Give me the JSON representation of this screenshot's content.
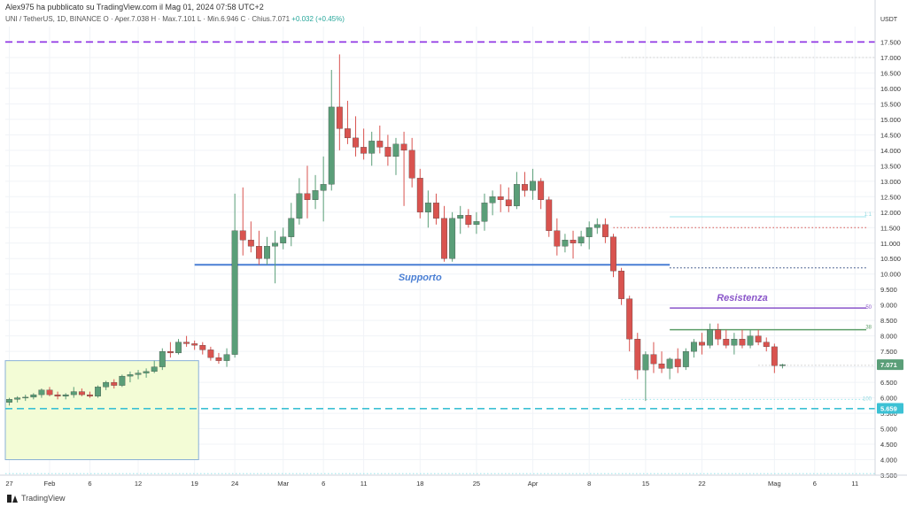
{
  "header": {
    "published": "Alex975 ha pubblicato su TradingView.com il Mag 01, 2024 07:58 UTC+2",
    "symbol_line": "UNI / TetherUS, 1D, BINANCE  O · Aper.7.038  H · Max.7.101  L · Min.6.946  C · Chius.7.071",
    "change": "+0.032 (+0.45%)"
  },
  "footer": {
    "brand": "TradingView"
  },
  "colors": {
    "up": "#5a9e78",
    "down": "#d9534f",
    "support": "#4a7fd4",
    "resistance_label": "#8a55c9",
    "dashed_purple": "#8a2be2",
    "dashed_cyan": "#3cc1d4"
  },
  "chart_data": {
    "type": "candlestick",
    "currency_label": "USDT",
    "y_ticks": [
      "17.500",
      "17.000",
      "16.500",
      "16.000",
      "15.500",
      "15.000",
      "14.500",
      "14.000",
      "13.500",
      "13.000",
      "12.500",
      "12.000",
      "11.500",
      "11.000",
      "10.500",
      "10.000",
      "9.500",
      "9.000",
      "8.500",
      "8.000",
      "7.500",
      "7.000",
      "6.500",
      "6.000",
      "5.500",
      "5.000",
      "4.500",
      "4.000",
      "3.500"
    ],
    "ylim": [
      3.5,
      18.0
    ],
    "x_ticks": [
      {
        "label": "27",
        "i": 0
      },
      {
        "label": "Feb",
        "i": 5
      },
      {
        "label": "6",
        "i": 10
      },
      {
        "label": "12",
        "i": 16
      },
      {
        "label": "19",
        "i": 23
      },
      {
        "label": "24",
        "i": 28
      },
      {
        "label": "Mar",
        "i": 34
      },
      {
        "label": "6",
        "i": 39
      },
      {
        "label": "11",
        "i": 44
      },
      {
        "label": "18",
        "i": 51
      },
      {
        "label": "25",
        "i": 58
      },
      {
        "label": "Apr",
        "i": 65
      },
      {
        "label": "8",
        "i": 72
      },
      {
        "label": "15",
        "i": 79
      },
      {
        "label": "22",
        "i": 86
      },
      {
        "label": "Mag",
        "i": 95
      },
      {
        "label": "6",
        "i": 100
      },
      {
        "label": "11",
        "i": 105
      }
    ],
    "candles": [
      [
        5.85,
        6.0,
        5.75,
        5.95
      ],
      [
        5.95,
        6.05,
        5.85,
        6.0
      ],
      [
        6.0,
        6.1,
        5.9,
        6.02
      ],
      [
        6.02,
        6.15,
        5.95,
        6.1
      ],
      [
        6.1,
        6.3,
        6.0,
        6.25
      ],
      [
        6.25,
        6.35,
        6.05,
        6.1
      ],
      [
        6.1,
        6.2,
        5.95,
        6.05
      ],
      [
        6.05,
        6.15,
        5.95,
        6.1
      ],
      [
        6.1,
        6.35,
        6.0,
        6.2
      ],
      [
        6.2,
        6.3,
        6.05,
        6.1
      ],
      [
        6.1,
        6.2,
        6.0,
        6.05
      ],
      [
        6.05,
        6.4,
        6.0,
        6.35
      ],
      [
        6.35,
        6.55,
        6.25,
        6.5
      ],
      [
        6.5,
        6.6,
        6.3,
        6.4
      ],
      [
        6.4,
        6.75,
        6.35,
        6.7
      ],
      [
        6.7,
        6.85,
        6.5,
        6.75
      ],
      [
        6.75,
        6.9,
        6.6,
        6.8
      ],
      [
        6.8,
        6.95,
        6.65,
        6.85
      ],
      [
        6.85,
        7.2,
        6.8,
        7.0
      ],
      [
        7.0,
        7.6,
        6.9,
        7.5
      ],
      [
        7.5,
        7.8,
        7.3,
        7.45
      ],
      [
        7.45,
        7.9,
        7.4,
        7.8
      ],
      [
        7.8,
        8.0,
        7.65,
        7.75
      ],
      [
        7.75,
        7.85,
        7.55,
        7.7
      ],
      [
        7.7,
        7.8,
        7.4,
        7.55
      ],
      [
        7.55,
        7.65,
        7.2,
        7.3
      ],
      [
        7.3,
        7.45,
        7.1,
        7.2
      ],
      [
        7.2,
        7.6,
        7.0,
        7.4
      ],
      [
        7.4,
        12.6,
        7.3,
        11.4
      ],
      [
        11.4,
        12.8,
        10.6,
        11.1
      ],
      [
        11.1,
        11.7,
        10.7,
        10.9
      ],
      [
        10.9,
        11.4,
        10.3,
        10.5
      ],
      [
        10.5,
        11.2,
        10.3,
        10.9
      ],
      [
        10.9,
        11.4,
        9.7,
        11.0
      ],
      [
        11.0,
        11.5,
        10.8,
        11.2
      ],
      [
        11.2,
        12.3,
        10.9,
        11.8
      ],
      [
        11.8,
        13.1,
        11.6,
        12.6
      ],
      [
        12.6,
        13.5,
        11.8,
        12.4
      ],
      [
        12.4,
        13.2,
        12.1,
        12.7
      ],
      [
        12.7,
        13.8,
        11.7,
        12.9
      ],
      [
        12.9,
        16.6,
        12.7,
        15.4
      ],
      [
        15.4,
        17.1,
        14.0,
        14.7
      ],
      [
        14.7,
        15.6,
        14.2,
        14.4
      ],
      [
        14.4,
        15.1,
        13.8,
        14.1
      ],
      [
        14.1,
        14.7,
        13.7,
        13.9
      ],
      [
        13.9,
        14.6,
        13.5,
        14.3
      ],
      [
        14.3,
        14.8,
        13.9,
        14.1
      ],
      [
        14.1,
        14.5,
        13.5,
        13.8
      ],
      [
        13.8,
        14.4,
        13.2,
        14.2
      ],
      [
        14.2,
        14.6,
        12.2,
        14.0
      ],
      [
        14.0,
        14.4,
        12.8,
        13.1
      ],
      [
        13.1,
        13.4,
        11.8,
        12.0
      ],
      [
        12.0,
        12.7,
        11.5,
        12.3
      ],
      [
        12.3,
        12.6,
        11.6,
        11.8
      ],
      [
        11.8,
        12.2,
        10.4,
        10.5
      ],
      [
        10.5,
        12.0,
        10.4,
        11.8
      ],
      [
        11.8,
        12.2,
        11.3,
        11.9
      ],
      [
        11.9,
        12.1,
        11.5,
        11.6
      ],
      [
        11.6,
        12.0,
        11.3,
        11.7
      ],
      [
        11.7,
        12.6,
        11.4,
        12.3
      ],
      [
        12.3,
        12.7,
        11.9,
        12.5
      ],
      [
        12.5,
        12.9,
        12.0,
        12.4
      ],
      [
        12.4,
        12.8,
        12.0,
        12.2
      ],
      [
        12.2,
        13.3,
        12.1,
        12.9
      ],
      [
        12.9,
        13.3,
        12.5,
        12.7
      ],
      [
        12.7,
        13.4,
        12.4,
        13.0
      ],
      [
        13.0,
        13.1,
        12.1,
        12.4
      ],
      [
        12.4,
        12.5,
        11.2,
        11.4
      ],
      [
        11.4,
        11.8,
        10.6,
        10.9
      ],
      [
        10.9,
        11.3,
        10.7,
        11.1
      ],
      [
        11.1,
        11.4,
        10.5,
        11.0
      ],
      [
        11.0,
        11.4,
        10.9,
        11.2
      ],
      [
        11.2,
        11.7,
        10.8,
        11.5
      ],
      [
        11.5,
        11.8,
        11.3,
        11.6
      ],
      [
        11.6,
        11.8,
        11.0,
        11.2
      ],
      [
        11.2,
        11.3,
        9.9,
        10.1
      ],
      [
        10.1,
        10.2,
        9.0,
        9.2
      ],
      [
        9.2,
        9.3,
        7.5,
        7.9
      ],
      [
        7.9,
        8.1,
        6.6,
        6.9
      ],
      [
        6.9,
        7.5,
        5.9,
        7.4
      ],
      [
        7.4,
        7.8,
        6.8,
        7.1
      ],
      [
        7.1,
        7.5,
        6.8,
        6.95
      ],
      [
        6.95,
        7.3,
        6.6,
        7.25
      ],
      [
        7.25,
        7.6,
        6.8,
        7.0
      ],
      [
        7.0,
        7.6,
        6.9,
        7.5
      ],
      [
        7.5,
        7.9,
        7.3,
        7.8
      ],
      [
        7.8,
        8.1,
        7.4,
        7.7
      ],
      [
        7.7,
        8.4,
        7.6,
        8.2
      ],
      [
        8.2,
        8.4,
        7.7,
        7.9
      ],
      [
        7.9,
        8.2,
        7.6,
        7.7
      ],
      [
        7.7,
        8.1,
        7.4,
        7.9
      ],
      [
        7.9,
        8.2,
        7.6,
        7.7
      ],
      [
        7.7,
        8.2,
        7.6,
        8.0
      ],
      [
        8.0,
        8.2,
        7.7,
        7.8
      ],
      [
        7.8,
        7.95,
        7.5,
        7.65
      ],
      [
        7.65,
        7.75,
        6.8,
        7.04
      ],
      [
        7.04,
        7.1,
        6.95,
        7.07
      ]
    ],
    "horizontal_lines": [
      {
        "name": "dashed-purple-top",
        "value": 17.5,
        "style": "dashed",
        "color": "#8a2be2"
      },
      {
        "name": "dotted-17",
        "value": 17.0,
        "style": "dotted",
        "color": "#cccccc"
      },
      {
        "name": "cyan-11.85",
        "value": 11.85,
        "style": "solid",
        "color": "#9ee6ec",
        "label": "1:1"
      },
      {
        "name": "red-dotted-11.5",
        "value": 11.5,
        "style": "dotted",
        "color": "#d9534f"
      },
      {
        "name": "support",
        "value": 10.3,
        "style": "solid",
        "color": "#4a7fd4",
        "label": "Supporto"
      },
      {
        "name": "navy-dotted-10.2",
        "value": 10.2,
        "style": "dotted",
        "color": "#1f3a75"
      },
      {
        "name": "fib-50",
        "value": 8.9,
        "style": "solid",
        "color": "#8a55c9",
        "label": "50"
      },
      {
        "name": "resistance-label",
        "value": 9.1,
        "label": "Resistenza"
      },
      {
        "name": "fib-38",
        "value": 8.2,
        "style": "solid",
        "color": "#5c9e68",
        "label": "38"
      },
      {
        "name": "dotted-7.05",
        "value": 7.05,
        "style": "dotted",
        "color": "#cccccc"
      },
      {
        "name": "dotted-6.0",
        "value": 5.95,
        "style": "dotted",
        "color": "#9ee6ec",
        "label": "100"
      },
      {
        "name": "dashed-cyan",
        "value": 5.65,
        "style": "dashed",
        "color": "#3cc1d4"
      },
      {
        "name": "dotted-bottom",
        "value": 3.55,
        "style": "dotted",
        "color": "#9ee6ec"
      }
    ],
    "range_box": {
      "i_start": 0,
      "i_end": 23,
      "top": 7.2,
      "bottom": 4.0,
      "fill": "#f3fcd6",
      "stroke": "#8ab0d6"
    },
    "price_labels": [
      {
        "value": 7.071,
        "text": "7.071",
        "color": "#5a9e78"
      },
      {
        "value": 5.659,
        "text": "5.659",
        "color": "#3cc1d4"
      }
    ]
  }
}
